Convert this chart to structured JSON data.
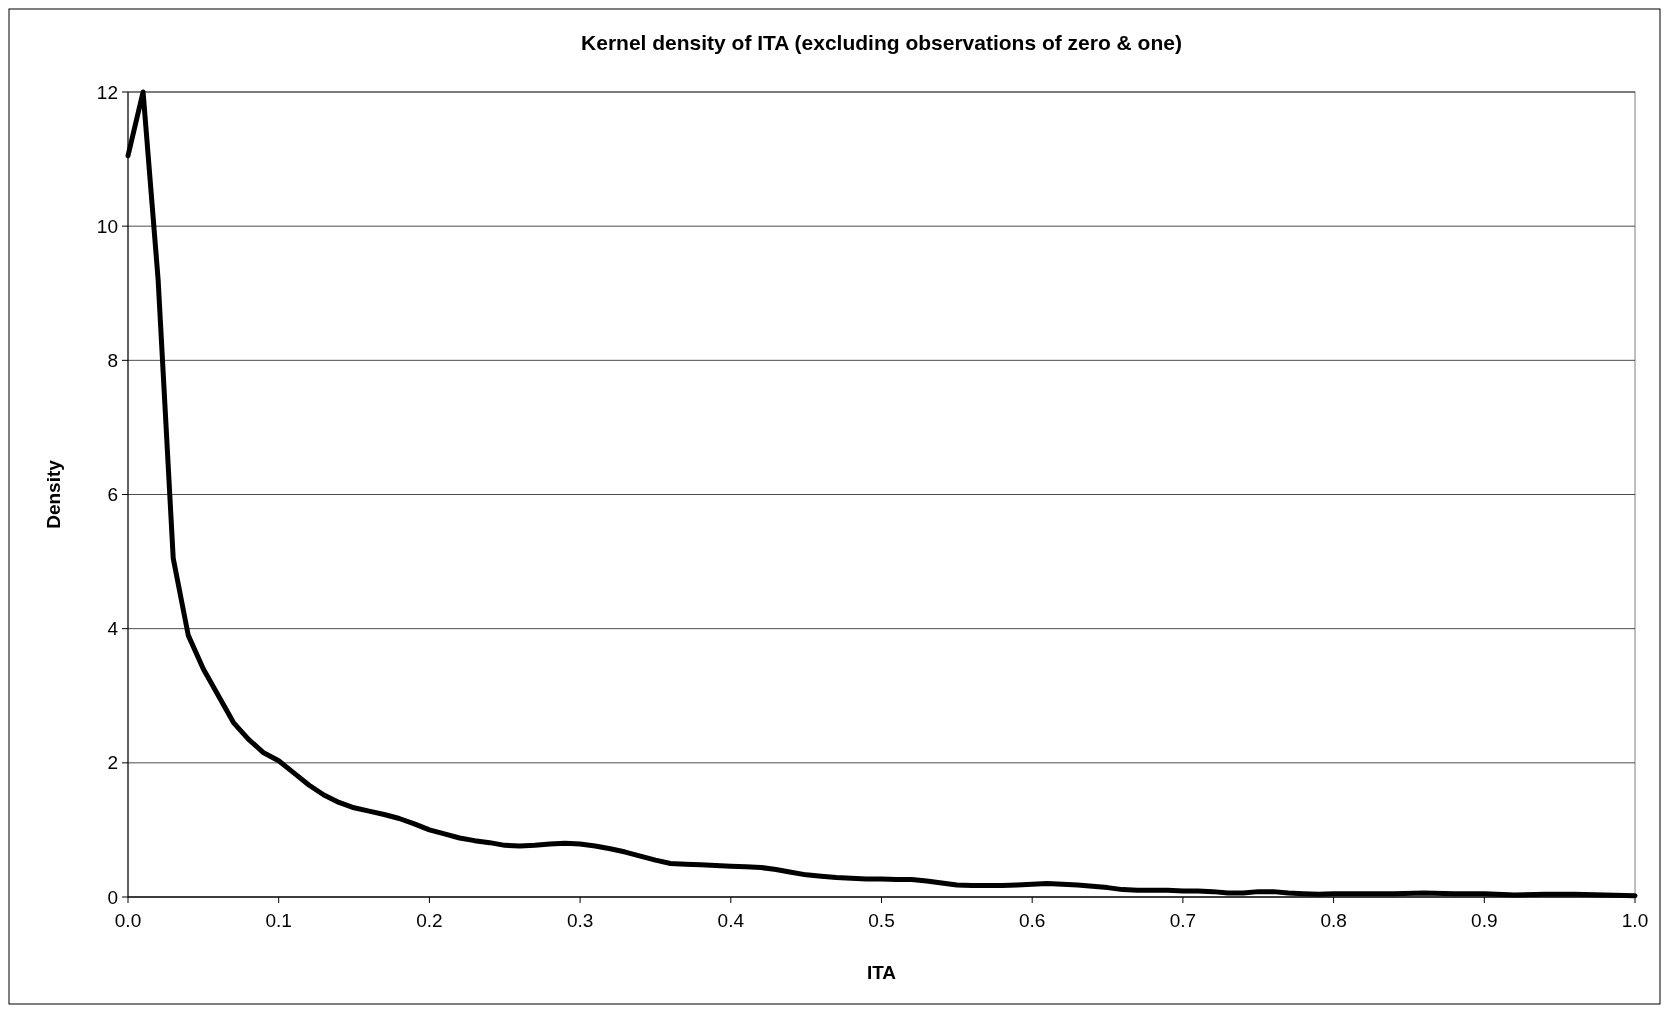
{
  "chart_data": {
    "type": "line",
    "title": "Kernel density of ITA (excluding observations of zero & one)",
    "xlabel": "ITA",
    "ylabel": "Density",
    "x": [
      0,
      0.01,
      0.02,
      0.03,
      0.04,
      0.05,
      0.06,
      0.07,
      0.08,
      0.09,
      0.1,
      0.11,
      0.12,
      0.13,
      0.14,
      0.15,
      0.16,
      0.17,
      0.18,
      0.19,
      0.2,
      0.21,
      0.22,
      0.23,
      0.24,
      0.25,
      0.26,
      0.27,
      0.28,
      0.29,
      0.3,
      0.31,
      0.32,
      0.33,
      0.34,
      0.35,
      0.36,
      0.37,
      0.38,
      0.39,
      0.4,
      0.41,
      0.42,
      0.43,
      0.44,
      0.45,
      0.46,
      0.47,
      0.48,
      0.49,
      0.5,
      0.51,
      0.52,
      0.53,
      0.54,
      0.55,
      0.56,
      0.57,
      0.58,
      0.59,
      0.6,
      0.61,
      0.62,
      0.63,
      0.64,
      0.65,
      0.66,
      0.67,
      0.68,
      0.69,
      0.7,
      0.71,
      0.72,
      0.73,
      0.74,
      0.75,
      0.76,
      0.77,
      0.78,
      0.79,
      0.8,
      0.82,
      0.84,
      0.86,
      0.88,
      0.9,
      0.92,
      0.94,
      0.96,
      0.98,
      1.0
    ],
    "series": [
      {
        "color": "#000000",
        "values": [
          11.05,
          12,
          9.2,
          5.05,
          3.9,
          3.4,
          3.0,
          2.6,
          2.35,
          2.15,
          2.03,
          1.85,
          1.67,
          1.52,
          1.41,
          1.33,
          1.28,
          1.23,
          1.17,
          1.09,
          1.0,
          0.94,
          0.88,
          0.84,
          0.81,
          0.77,
          0.76,
          0.77,
          0.79,
          0.8,
          0.79,
          0.76,
          0.72,
          0.67,
          0.61,
          0.55,
          0.5,
          0.49,
          0.48,
          0.47,
          0.46,
          0.45,
          0.44,
          0.41,
          0.37,
          0.33,
          0.31,
          0.29,
          0.28,
          0.27,
          0.27,
          0.26,
          0.26,
          0.24,
          0.21,
          0.18,
          0.17,
          0.17,
          0.17,
          0.18,
          0.19,
          0.2,
          0.19,
          0.18,
          0.16,
          0.14,
          0.11,
          0.1,
          0.1,
          0.1,
          0.09,
          0.09,
          0.08,
          0.06,
          0.06,
          0.08,
          0.08,
          0.06,
          0.05,
          0.04,
          0.05,
          0.05,
          0.05,
          0.06,
          0.05,
          0.05,
          0.03,
          0.04,
          0.04,
          0.03,
          0.02
        ]
      }
    ],
    "xlim": [
      0,
      1
    ],
    "xticks": [
      {
        "value": 0,
        "label": "0.0"
      },
      0.1,
      0.2,
      0.3,
      0.4,
      0.5,
      0.6,
      0.7,
      0.8,
      0.9,
      {
        "value": 1,
        "label": "1.0"
      }
    ],
    "ylim": [
      0,
      12
    ],
    "yticks": [
      0,
      2,
      4,
      6,
      8,
      10,
      12
    ],
    "grid": "y",
    "marker": "none",
    "line_style": "solid"
  }
}
